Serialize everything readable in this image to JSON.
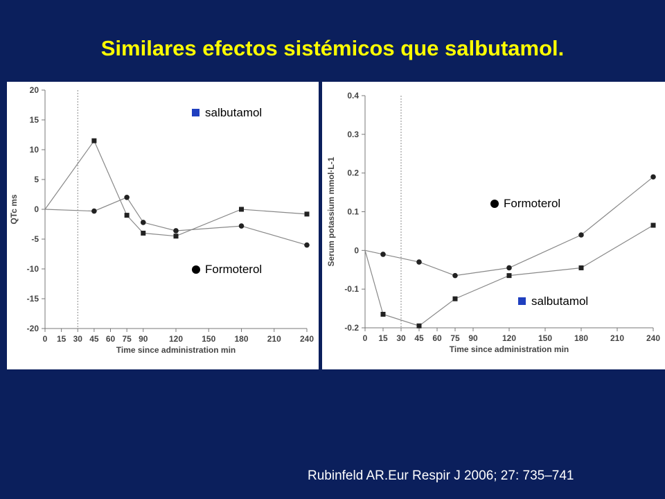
{
  "slide": {
    "title": "Similares efectos sistémicos que salbutamol.",
    "citation": "Rubinfeld AR.Eur Respir J 2006; 27: 735–741"
  },
  "colors": {
    "background": "#0b1f5c",
    "title": "#ffff00",
    "legend_square": "#1f3fbf",
    "line": "#888888",
    "marker": "#222222"
  },
  "chart_data": [
    {
      "type": "line",
      "ylabel": "QTc ms",
      "xlabel": "Time since administration min",
      "x_ticks": [
        0,
        15,
        30,
        45,
        60,
        75,
        90,
        120,
        150,
        180,
        210,
        240
      ],
      "y_ticks": [
        20,
        15,
        10,
        5,
        0,
        -5,
        -10,
        -15,
        -20
      ],
      "xlim": [
        0,
        240
      ],
      "ylim": [
        -20,
        20
      ],
      "dashed_vline_x": 30,
      "series": [
        {
          "name": "salbutamol",
          "marker": "square",
          "x": [
            0,
            45,
            75,
            90,
            120,
            180,
            240
          ],
          "y": [
            0,
            11.5,
            -1,
            -4,
            -4.5,
            0,
            -0.8
          ]
        },
        {
          "name": "Formoterol",
          "marker": "circle",
          "x": [
            0,
            45,
            75,
            90,
            120,
            180,
            240
          ],
          "y": [
            0,
            -0.3,
            2,
            -2.2,
            -3.6,
            -2.8,
            -6
          ]
        }
      ],
      "legend": [
        {
          "label": "salbutamol",
          "marker": "square",
          "position": "top-right"
        },
        {
          "label": "Formoterol",
          "marker": "circle",
          "position": "bottom-center"
        }
      ]
    },
    {
      "type": "line",
      "ylabel": "Serum potassium mmol·L-1",
      "xlabel": "Time since administration min",
      "x_ticks": [
        0,
        15,
        30,
        45,
        60,
        75,
        90,
        120,
        150,
        180,
        210,
        240
      ],
      "y_ticks": [
        0.4,
        0.3,
        0.2,
        0.1,
        0,
        -0.1,
        -0.2
      ],
      "xlim": [
        0,
        240
      ],
      "ylim": [
        -0.2,
        0.4
      ],
      "dashed_vline_x": 30,
      "series": [
        {
          "name": "Formoterol",
          "marker": "circle",
          "x": [
            0,
            15,
            45,
            75,
            120,
            180,
            240
          ],
          "y": [
            0,
            -0.01,
            -0.03,
            -0.065,
            -0.045,
            0.04,
            0.19
          ]
        },
        {
          "name": "salbutamol",
          "marker": "square",
          "x": [
            0,
            15,
            45,
            75,
            120,
            180,
            240
          ],
          "y": [
            0,
            -0.165,
            -0.195,
            -0.125,
            -0.065,
            -0.045,
            0.065
          ]
        }
      ],
      "legend": [
        {
          "label": "Formoterol",
          "marker": "circle",
          "position": "middle-right"
        },
        {
          "label": "salbutamol",
          "marker": "square",
          "position": "bottom-right"
        }
      ]
    }
  ]
}
